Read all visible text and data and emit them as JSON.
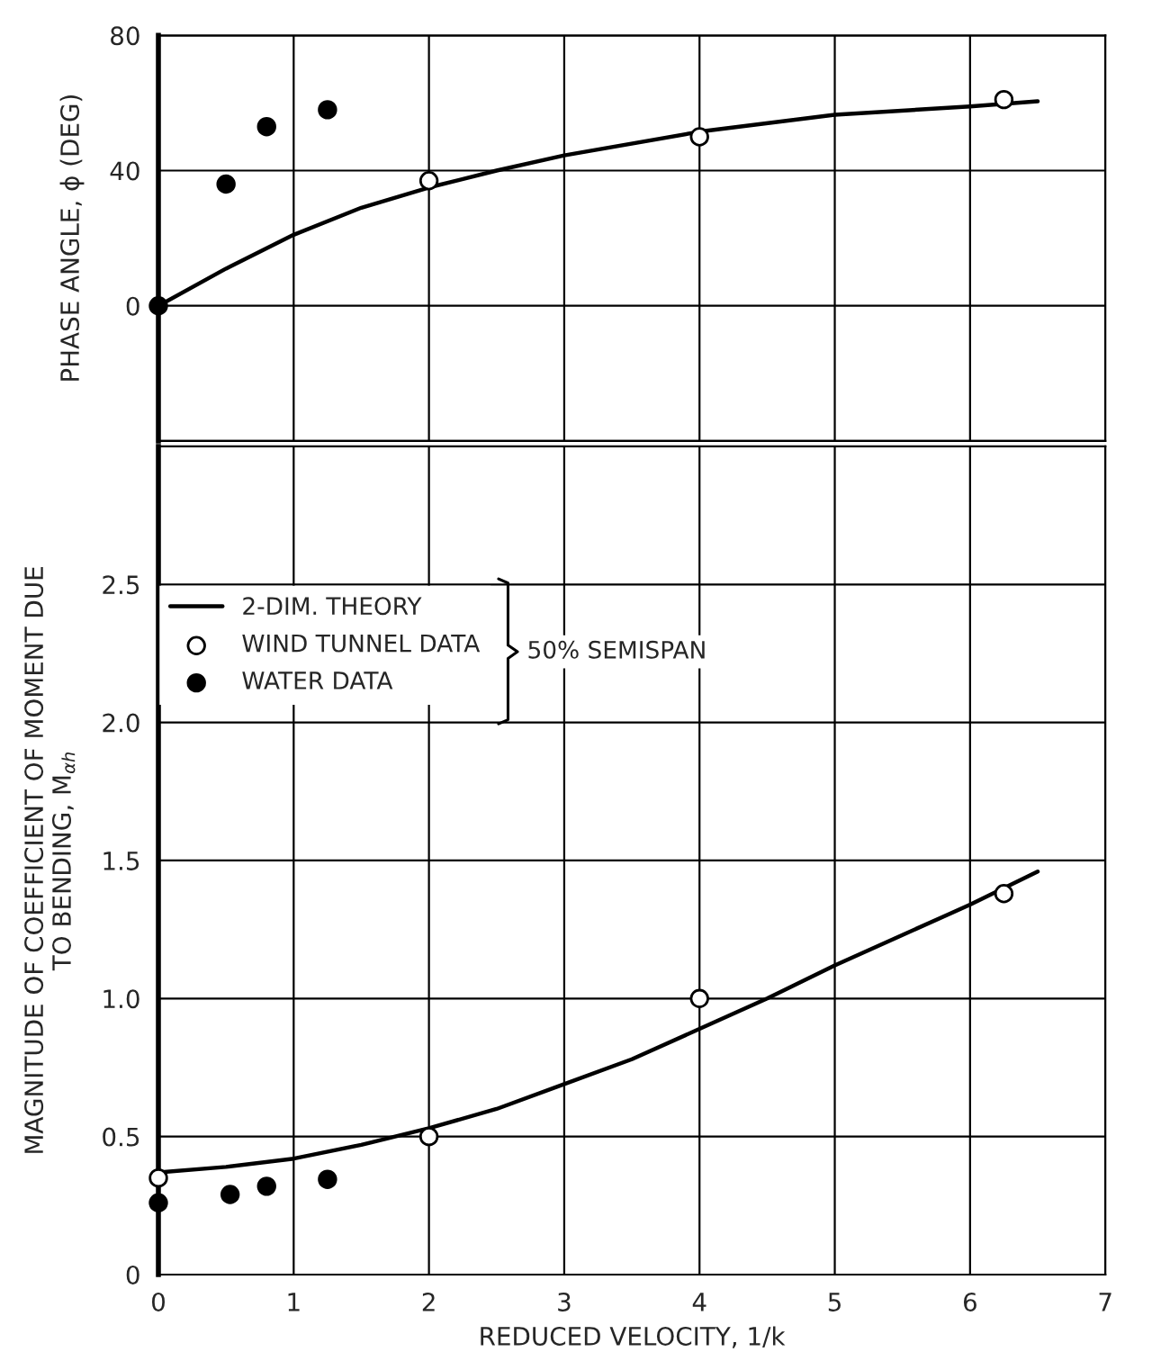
{
  "chart_data": [
    {
      "type": "line",
      "ylabel": "PHASE ANGLE, ϕ (DEG)",
      "xlim": [
        0,
        7
      ],
      "xticks": [
        0,
        1,
        2,
        3,
        4,
        5,
        6,
        7
      ],
      "ylim": [
        -40,
        80
      ],
      "yticks": [
        {
          "value": -40,
          "label": null
        },
        0,
        40,
        80
      ],
      "grid": true,
      "tick_labels": "y",
      "series": [
        {
          "color": "#000000",
          "x": [
            0,
            0.5,
            1,
            1.5,
            2,
            2.5,
            3,
            4,
            5,
            6,
            6.5
          ],
          "values": [
            0,
            11,
            21,
            29,
            35,
            40,
            44.5,
            51.5,
            56.5,
            59,
            60.5
          ]
        },
        {
          "type": "scatter",
          "color": "#ffffff",
          "marker": "circle",
          "x": [
            2,
            4,
            6.25
          ],
          "values": [
            37,
            50,
            61
          ]
        },
        {
          "type": "scatter",
          "color": "#000000",
          "marker": "circle",
          "x": [
            0,
            0.5,
            0.8,
            1.25
          ],
          "values": [
            0,
            36,
            53,
            58
          ]
        }
      ]
    },
    {
      "type": "line",
      "xlabel": "REDUCED VELOCITY, 1/k",
      "ylabel": "MAGNITUDE OF COEFFICIENT OF MOMENT DUE\nTO BENDING, M$_{αh}$",
      "xlim": [
        0,
        7
      ],
      "xticks": [
        0,
        1,
        2,
        3,
        4,
        5,
        6,
        7
      ],
      "ylim": [
        0,
        3.0
      ],
      "yticks": [
        0,
        0.5,
        {
          "value": 1.0,
          "label": "1.0"
        },
        1.5,
        {
          "value": 2.0,
          "label": "2.0"
        },
        2.5,
        {
          "value": 3.0,
          "label": null
        }
      ],
      "grid": true,
      "legend": "top left",
      "annotations": [
        "50% SEMISPAN"
      ],
      "series": [
        {
          "name": "2-DIM. THEORY",
          "color": "#000000",
          "x": [
            0,
            0.5,
            1,
            1.5,
            2,
            2.5,
            3,
            3.5,
            4,
            4.5,
            5,
            5.5,
            6,
            6.5
          ],
          "values": [
            0.37,
            0.39,
            0.42,
            0.47,
            0.53,
            0.6,
            0.69,
            0.78,
            0.89,
            1.0,
            1.12,
            1.23,
            1.34,
            1.46
          ]
        },
        {
          "type": "scatter",
          "name": "WIND TUNNEL DATA",
          "color": "#ffffff",
          "marker": "circle",
          "x": [
            0,
            2,
            4,
            6.25
          ],
          "values": [
            0.35,
            0.5,
            1.0,
            1.38
          ]
        },
        {
          "type": "scatter",
          "name": "WATER DATA",
          "color": "#000000",
          "marker": "circle",
          "x": [
            0,
            0.53,
            0.8,
            1.25
          ],
          "values": [
            0.26,
            0.29,
            0.32,
            0.345
          ]
        }
      ]
    }
  ]
}
